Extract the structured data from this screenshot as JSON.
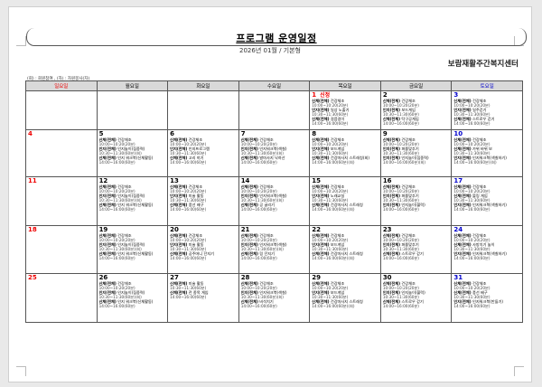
{
  "header": {
    "title": "프로그램 운영일정",
    "subtitle": "2026년 01월 / 기본형",
    "center_name": "보람재활주간복지센터",
    "legend": "(회) : 회원참여 , (자) : 자원봉사(자)"
  },
  "weekdays": [
    "일요일",
    "월요일",
    "화요일",
    "수요일",
    "목요일",
    "금요일",
    "토요일"
  ],
  "colors": {
    "sunday": "#e00000",
    "saturday": "#0000cc",
    "header_bg": "#d9d9d9"
  },
  "weeks": [
    [
      {
        "date": ""
      },
      {
        "date": ""
      },
      {
        "date": ""
      },
      {
        "date": ""
      },
      {
        "date": "1",
        "label": "신정",
        "items": [
          {
            "cat": "신체(전체)",
            "name": "건강체조",
            "time": "10:00~10:20(20분)"
          },
          {
            "cat": "인지(전체)",
            "name": "일상 노출기",
            "time": "10:30~11:30(60분)"
          },
          {
            "cat": "신체(전체)",
            "name": "걸음걸이",
            "time": "14:00~16:00(60분)"
          }
        ]
      },
      {
        "date": "2",
        "items": [
          {
            "cat": "신체(전체)",
            "name": "건강체조",
            "time": "10:00~10:20(20분)"
          },
          {
            "cat": "인지(전체)",
            "name": "보드게임",
            "time": "10:30~11:30(60분)"
          },
          {
            "cat": "신체(전체)",
            "name": "탁구공게임",
            "time": "14:00~16:00(60분)"
          }
        ]
      },
      {
        "date": "3",
        "items": [
          {
            "cat": "신체(전체)",
            "name": "건강체조",
            "time": "10:00~10:20(20분)"
          },
          {
            "cat": "인지(전체)",
            "name": "일주걷기",
            "time": "10:30~11:30(60분)"
          },
          {
            "cat": "신체(전체)",
            "name": "스트로우 걷기",
            "time": "14:00~16:00(60분)"
          }
        ]
      }
    ],
    [
      {
        "date": "4"
      },
      {
        "date": "5",
        "items": [
          {
            "cat": "신체(전체)",
            "name": "건강체조",
            "time": "10:00~10:20(20분)"
          },
          {
            "cat": "인지(전체)",
            "name": "인지놀이(집중력)",
            "time": "10:30~11:30(60분)(회)"
          },
          {
            "cat": "신체(전체)",
            "name": "인지 워크북(신체활동)",
            "time": "14:00~16:00(60분)"
          }
        ]
      },
      {
        "date": "6",
        "items": [
          {
            "cat": "신체(전체)",
            "name": "건강체조",
            "time": "10:00~10:20(20분)"
          },
          {
            "cat": "인지(전체)",
            "name": "인지프로그램",
            "time": "10:30~11:30(60분)"
          },
          {
            "cat": "신체(전체)",
            "name": "고리 끼기",
            "time": "14:00~16:00(60분)"
          }
        ]
      },
      {
        "date": "7",
        "items": [
          {
            "cat": "신체(전체)",
            "name": "건강체조",
            "time": "10:00~10:20(20분)"
          },
          {
            "cat": "인지(전체)",
            "name": "인지워크북(색칠)",
            "time": "10:30~11:30(60분)(회)"
          },
          {
            "cat": "신체(전체)",
            "name": "발마사지 낙하산",
            "time": "14:00~16:00(60분)"
          }
        ]
      },
      {
        "date": "8",
        "items": [
          {
            "cat": "신체(전체)",
            "name": "건강체조",
            "time": "10:00~10:20(20분)"
          },
          {
            "cat": "인지(전체)",
            "name": "보드게임",
            "time": "10:30~11:30(60분)"
          },
          {
            "cat": "신체(전체)",
            "name": "건강마사지 스트레칭(회)",
            "time": "14:00~16:00(60분)(회)"
          }
        ]
      },
      {
        "date": "9",
        "items": [
          {
            "cat": "신체(전체)",
            "name": "건강체조",
            "time": "10:00~10:20(20분)"
          },
          {
            "cat": "인지(전체)",
            "name": "퍼즐맞추기",
            "time": "10:30~11:30(60분)"
          },
          {
            "cat": "인지(전체)",
            "name": "인지놀이(집중력)",
            "time": "14:00~16:00(60분)(회)"
          }
        ]
      },
      {
        "date": "10",
        "items": [
          {
            "cat": "신체(전체)",
            "name": "건강체조",
            "time": "10:00~10:20(20분)"
          },
          {
            "cat": "신체(전체)",
            "name": "가위 바위 보",
            "time": "10:30~11:30(60분)"
          },
          {
            "cat": "인지(전체)",
            "name": "인지워크북(색칠하기)",
            "time": "14:00~16:00(60분)(회)"
          }
        ]
      }
    ],
    [
      {
        "date": "11"
      },
      {
        "date": "12",
        "items": [
          {
            "cat": "신체(전체)",
            "name": "건강체조",
            "time": "10:00~10:20(20분)"
          },
          {
            "cat": "인지(전체)",
            "name": "인지놀이(집중력)",
            "time": "10:30~11:30(60분)(회)"
          },
          {
            "cat": "신체(전체)",
            "name": "인지 워크북(신체활동)",
            "time": "14:00~16:00(60분)"
          }
        ]
      },
      {
        "date": "13",
        "items": [
          {
            "cat": "신체(전체)",
            "name": "건강체조",
            "time": "10:00~10:20(20분)"
          },
          {
            "cat": "인지(전체)",
            "name": "미술 활동",
            "time": "10:30~11:30(60분)"
          },
          {
            "cat": "신체(전체)",
            "name": "풍선 배구",
            "time": "14:00~16:00(60분)"
          }
        ]
      },
      {
        "date": "14",
        "items": [
          {
            "cat": "신체(전체)",
            "name": "건강체조",
            "time": "10:00~10:20(20분)"
          },
          {
            "cat": "인지(전체)",
            "name": "인지워크북(색칠)",
            "time": "10:30~11:30(60분)(회)"
          },
          {
            "cat": "신체(전체)",
            "name": "공 굴리기",
            "time": "14:00~16:00(60분)"
          }
        ]
      },
      {
        "date": "15",
        "items": [
          {
            "cat": "신체(전체)",
            "name": "건강체조",
            "time": "10:00~10:20(20분)"
          },
          {
            "cat": "인지(전체)",
            "name": "노래교실",
            "time": "10:30~11:30(60분)"
          },
          {
            "cat": "신체(전체)",
            "name": "건강마사지 스트레칭",
            "time": "14:00~16:00(60분)(회)"
          }
        ]
      },
      {
        "date": "16",
        "items": [
          {
            "cat": "신체(전체)",
            "name": "건강체조",
            "time": "10:00~10:20(20분)"
          },
          {
            "cat": "인지(전체)",
            "name": "퍼즐맞추기",
            "time": "10:30~11:30(60분)"
          },
          {
            "cat": "인지(전체)",
            "name": "인지놀이(블럭)",
            "time": "14:00~16:00(60분)"
          }
        ]
      },
      {
        "date": "17",
        "items": [
          {
            "cat": "신체(전체)",
            "name": "건강체조",
            "time": "10:00~10:20(20분)"
          },
          {
            "cat": "신체(전체)",
            "name": "볼링 게임",
            "time": "10:30~11:30(60분)"
          },
          {
            "cat": "인지(전체)",
            "name": "인지워크북(색칠하기)",
            "time": "14:00~16:00(60분)"
          }
        ]
      }
    ],
    [
      {
        "date": "18"
      },
      {
        "date": "19",
        "items": [
          {
            "cat": "신체(전체)",
            "name": "건강체조",
            "time": "10:00~10:20(20분)"
          },
          {
            "cat": "인지(전체)",
            "name": "인지놀이(집중력)",
            "time": "10:30~11:30(60분)(회)"
          },
          {
            "cat": "신체(전체)",
            "name": "인지 워크북(신체활동)",
            "time": "14:00~16:00(60분)"
          }
        ]
      },
      {
        "date": "20",
        "items": [
          {
            "cat": "신체(전체)",
            "name": "건강체조",
            "time": "10:00~10:20(20분)"
          },
          {
            "cat": "인지(전체)",
            "name": "미술 활동",
            "time": "10:30~11:30(60분)"
          },
          {
            "cat": "신체(전체)",
            "name": "공주머니 던지기",
            "time": "14:00~16:00(60분)"
          }
        ]
      },
      {
        "date": "21",
        "items": [
          {
            "cat": "신체(전체)",
            "name": "건강체조",
            "time": "10:00~10:20(20분)"
          },
          {
            "cat": "인지(전체)",
            "name": "인지워크북(색칠)",
            "time": "10:30~11:30(60분)(회)"
          },
          {
            "cat": "신체(전체)",
            "name": "링 던지기",
            "time": "14:00~16:00(60분)"
          }
        ]
      },
      {
        "date": "22",
        "items": [
          {
            "cat": "신체(전체)",
            "name": "건강체조",
            "time": "10:00~10:20(20분)"
          },
          {
            "cat": "인지(전체)",
            "name": "보드게임",
            "time": "10:30~11:30(60분)"
          },
          {
            "cat": "신체(전체)",
            "name": "건강마사지 스트레칭",
            "time": "14:00~16:00(60분)(회)"
          }
        ]
      },
      {
        "date": "23",
        "items": [
          {
            "cat": "신체(전체)",
            "name": "건강체조",
            "time": "10:00~10:20(20분)"
          },
          {
            "cat": "인지(전체)",
            "name": "퍼즐맞추기",
            "time": "10:30~11:30(60분)"
          },
          {
            "cat": "신체(전체)",
            "name": "스트로우 걷기",
            "time": "14:00~16:00(60분)"
          }
        ]
      },
      {
        "date": "24",
        "items": [
          {
            "cat": "신체(전체)",
            "name": "건강체조",
            "time": "10:00~10:20(20분)"
          },
          {
            "cat": "신체(전체)",
            "name": "사방치기 놀이",
            "time": "10:30~11:30(60분)"
          },
          {
            "cat": "인지(전체)",
            "name": "인지워크북(색칠하기)",
            "time": "14:00~16:00(60분)"
          }
        ]
      }
    ],
    [
      {
        "date": "25"
      },
      {
        "date": "26",
        "items": [
          {
            "cat": "신체(전체)",
            "name": "건강체조",
            "time": "10:00~10:20(20분)"
          },
          {
            "cat": "인지(전체)",
            "name": "인지놀이(집중력)",
            "time": "10:30~11:30(60분)(회)"
          },
          {
            "cat": "신체(전체)",
            "name": "인지 워크북(신체활동)",
            "time": "14:00~16:00(60분)"
          }
        ]
      },
      {
        "date": "27",
        "items": [
          {
            "cat": "신체(전체)",
            "name": "미술 활동",
            "time": "10:30~11:30(60분)"
          },
          {
            "cat": "신체(전체)",
            "name": "전 종목 게임",
            "time": "14:00~16:00(60분)"
          }
        ]
      },
      {
        "date": "28",
        "items": [
          {
            "cat": "신체(전체)",
            "name": "건강체조",
            "time": "10:00~10:20(20분)"
          },
          {
            "cat": "인지(전체)",
            "name": "인지워크북(색칠)",
            "time": "10:30~11:30(60분)(회)"
          },
          {
            "cat": "신체(전체)",
            "name": "비석치기",
            "time": "14:00~16:00(60분)"
          }
        ]
      },
      {
        "date": "29",
        "items": [
          {
            "cat": "신체(전체)",
            "name": "건강체조",
            "time": "10:00~10:20(20분)"
          },
          {
            "cat": "인지(전체)",
            "name": "보드게임",
            "time": "10:30~11:30(60분)"
          },
          {
            "cat": "신체(전체)",
            "name": "건강마사지 스트레칭",
            "time": "14:00~16:00(60분)(회)"
          }
        ]
      },
      {
        "date": "30",
        "items": [
          {
            "cat": "신체(전체)",
            "name": "건강체조",
            "time": "10:00~10:20(20분)"
          },
          {
            "cat": "인지(전체)",
            "name": "인지놀이(블럭)",
            "time": "10:30~11:30(60분)"
          },
          {
            "cat": "신체(전체)",
            "name": "스트로우 걷기",
            "time": "14:00~16:00(60분)"
          }
        ]
      },
      {
        "date": "31",
        "items": [
          {
            "cat": "신체(전체)",
            "name": "건강체조",
            "time": "10:00~10:20(20분)"
          },
          {
            "cat": "신체(전체)",
            "name": "풍선 배구",
            "time": "10:30~11:30(60분)"
          },
          {
            "cat": "인지(전체)",
            "name": "인지워크북(만들기)",
            "time": "14:00~16:00(60분)"
          }
        ]
      }
    ]
  ]
}
